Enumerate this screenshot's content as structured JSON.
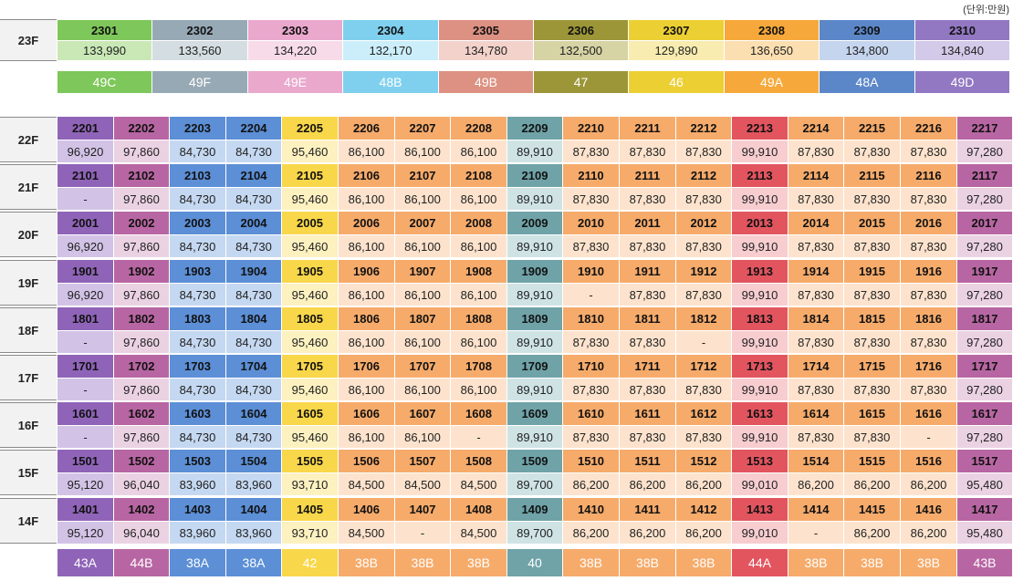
{
  "unit_note": "(단위:만원)",
  "colors": {
    "s1": {
      "h": "#8f64b8",
      "l": "#d2c3e6"
    },
    "s2": {
      "h": "#b866a3",
      "l": "#ead2e3"
    },
    "s3": {
      "h": "#5c8fd6",
      "l": "#c5d8f1"
    },
    "s4": {
      "h": "#5c8fd6",
      "l": "#c5d8f1"
    },
    "s5": {
      "h": "#f9d74a",
      "l": "#fdf1c0"
    },
    "s6": {
      "h": "#f6ab6b",
      "l": "#fde3cd"
    },
    "s7": {
      "h": "#f6ab6b",
      "l": "#fde3cd"
    },
    "s8": {
      "h": "#f6ab6b",
      "l": "#fde3cd"
    },
    "s9": {
      "h": "#6fa3a8",
      "l": "#cfe3e5"
    },
    "s10": {
      "h": "#f6ab6b",
      "l": "#fde3cd"
    },
    "s11": {
      "h": "#f6ab6b",
      "l": "#fde3cd"
    },
    "s12": {
      "h": "#f6ab6b",
      "l": "#fde3cd"
    },
    "s13": {
      "h": "#e2555f",
      "l": "#f7cdd0"
    },
    "s14": {
      "h": "#f6ab6b",
      "l": "#fde3cd"
    },
    "s15": {
      "h": "#f6ab6b",
      "l": "#fde3cd"
    },
    "s16": {
      "h": "#f6ab6b",
      "l": "#fde3cd"
    },
    "s17": {
      "h": "#b866a3",
      "l": "#ead2e3"
    }
  },
  "top": {
    "floor": "23F",
    "units": [
      {
        "no": "2301",
        "price": "133,990",
        "type": "49C",
        "h": "#7ec75a",
        "l": "#c9e8b6"
      },
      {
        "no": "2302",
        "price": "133,560",
        "type": "49F",
        "h": "#97a9b4",
        "l": "#d4dde2"
      },
      {
        "no": "2303",
        "price": "134,220",
        "type": "49E",
        "h": "#eaa8cd",
        "l": "#f7dbe9"
      },
      {
        "no": "2304",
        "price": "132,170",
        "type": "48B",
        "h": "#7fd0ef",
        "l": "#cbeefa"
      },
      {
        "no": "2305",
        "price": "134,780",
        "type": "49B",
        "h": "#dc9182",
        "l": "#f3d2cb"
      },
      {
        "no": "2306",
        "price": "132,500",
        "type": "47",
        "h": "#9c9638",
        "l": "#d6d3a4"
      },
      {
        "no": "2307",
        "price": "129,890",
        "type": "46",
        "h": "#eccf33",
        "l": "#f8ecb0"
      },
      {
        "no": "2308",
        "price": "136,650",
        "type": "49A",
        "h": "#f6a93a",
        "l": "#fcdfb1"
      },
      {
        "no": "2309",
        "price": "134,800",
        "type": "48A",
        "h": "#5b87c9",
        "l": "#c6d5ee"
      },
      {
        "no": "2310",
        "price": "134,840",
        "type": "49D",
        "h": "#9278c2",
        "l": "#d3c9e8"
      }
    ]
  },
  "grid": {
    "rows": [
      {
        "floor": "22F",
        "units": [
          "2201",
          "2202",
          "2203",
          "2204",
          "2205",
          "2206",
          "2207",
          "2208",
          "2209",
          "2210",
          "2211",
          "2212",
          "2213",
          "2214",
          "2215",
          "2216",
          "2217"
        ],
        "prices": [
          "96,920",
          "97,860",
          "84,730",
          "84,730",
          "95,460",
          "86,100",
          "86,100",
          "86,100",
          "89,910",
          "87,830",
          "87,830",
          "87,830",
          "99,910",
          "87,830",
          "87,830",
          "87,830",
          "97,280"
        ]
      },
      {
        "floor": "21F",
        "units": [
          "2101",
          "2102",
          "2103",
          "2104",
          "2105",
          "2106",
          "2107",
          "2108",
          "2109",
          "2110",
          "2111",
          "2112",
          "2113",
          "2114",
          "2115",
          "2116",
          "2117"
        ],
        "prices": [
          "-",
          "97,860",
          "84,730",
          "84,730",
          "95,460",
          "86,100",
          "86,100",
          "86,100",
          "89,910",
          "87,830",
          "87,830",
          "87,830",
          "99,910",
          "87,830",
          "87,830",
          "87,830",
          "97,280"
        ]
      },
      {
        "floor": "20F",
        "units": [
          "2001",
          "2002",
          "2003",
          "2004",
          "2005",
          "2006",
          "2007",
          "2008",
          "2009",
          "2010",
          "2011",
          "2012",
          "2013",
          "2014",
          "2015",
          "2016",
          "2017"
        ],
        "prices": [
          "96,920",
          "97,860",
          "84,730",
          "84,730",
          "95,460",
          "86,100",
          "86,100",
          "86,100",
          "89,910",
          "87,830",
          "87,830",
          "87,830",
          "99,910",
          "87,830",
          "87,830",
          "87,830",
          "97,280"
        ]
      },
      {
        "floor": "19F",
        "units": [
          "1901",
          "1902",
          "1903",
          "1904",
          "1905",
          "1906",
          "1907",
          "1908",
          "1909",
          "1910",
          "1911",
          "1912",
          "1913",
          "1914",
          "1915",
          "1916",
          "1917"
        ],
        "prices": [
          "96,920",
          "97,860",
          "84,730",
          "84,730",
          "95,460",
          "86,100",
          "86,100",
          "86,100",
          "89,910",
          "-",
          "87,830",
          "87,830",
          "99,910",
          "87,830",
          "87,830",
          "87,830",
          "97,280"
        ]
      },
      {
        "floor": "18F",
        "units": [
          "1801",
          "1802",
          "1803",
          "1804",
          "1805",
          "1806",
          "1807",
          "1808",
          "1809",
          "1810",
          "1811",
          "1812",
          "1813",
          "1814",
          "1815",
          "1816",
          "1817"
        ],
        "prices": [
          "-",
          "97,860",
          "84,730",
          "84,730",
          "95,460",
          "86,100",
          "86,100",
          "86,100",
          "89,910",
          "87,830",
          "87,830",
          "-",
          "99,910",
          "87,830",
          "87,830",
          "87,830",
          "97,280"
        ]
      },
      {
        "floor": "17F",
        "units": [
          "1701",
          "1702",
          "1703",
          "1704",
          "1705",
          "1706",
          "1707",
          "1708",
          "1709",
          "1710",
          "1711",
          "1712",
          "1713",
          "1714",
          "1715",
          "1716",
          "1717"
        ],
        "prices": [
          "-",
          "97,860",
          "84,730",
          "84,730",
          "95,460",
          "86,100",
          "86,100",
          "86,100",
          "89,910",
          "87,830",
          "87,830",
          "87,830",
          "99,910",
          "87,830",
          "87,830",
          "87,830",
          "97,280"
        ]
      },
      {
        "floor": "16F",
        "units": [
          "1601",
          "1602",
          "1603",
          "1604",
          "1605",
          "1606",
          "1607",
          "1608",
          "1609",
          "1610",
          "1611",
          "1612",
          "1613",
          "1614",
          "1615",
          "1616",
          "1617"
        ],
        "prices": [
          "-",
          "97,860",
          "84,730",
          "84,730",
          "95,460",
          "86,100",
          "86,100",
          "-",
          "89,910",
          "87,830",
          "87,830",
          "87,830",
          "99,910",
          "87,830",
          "87,830",
          "-",
          "97,280"
        ]
      },
      {
        "floor": "15F",
        "units": [
          "1501",
          "1502",
          "1503",
          "1504",
          "1505",
          "1506",
          "1507",
          "1508",
          "1509",
          "1510",
          "1511",
          "1512",
          "1513",
          "1514",
          "1515",
          "1516",
          "1517"
        ],
        "prices": [
          "95,120",
          "96,040",
          "83,960",
          "83,960",
          "93,710",
          "84,500",
          "84,500",
          "84,500",
          "89,700",
          "86,200",
          "86,200",
          "86,200",
          "99,010",
          "86,200",
          "86,200",
          "86,200",
          "95,480"
        ]
      },
      {
        "floor": "14F",
        "units": [
          "1401",
          "1402",
          "1403",
          "1404",
          "1405",
          "1406",
          "1407",
          "1408",
          "1409",
          "1410",
          "1411",
          "1412",
          "1413",
          "1414",
          "1415",
          "1416",
          "1417"
        ],
        "prices": [
          "95,120",
          "96,040",
          "83,960",
          "83,960",
          "93,710",
          "84,500",
          "-",
          "84,500",
          "89,700",
          "86,200",
          "86,200",
          "86,200",
          "99,010",
          "-",
          "86,200",
          "86,200",
          "95,480"
        ]
      }
    ],
    "types": [
      "43A",
      "44B",
      "38A",
      "38A",
      "42",
      "38B",
      "38B",
      "38B",
      "40",
      "38B",
      "38B",
      "38B",
      "44A",
      "38B",
      "38B",
      "38B",
      "43B"
    ]
  }
}
